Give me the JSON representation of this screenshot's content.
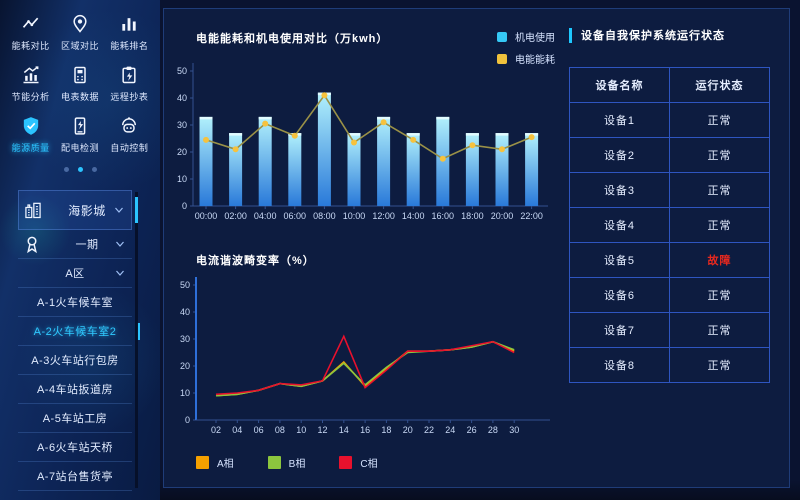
{
  "sidebar": {
    "menu": [
      {
        "label": "能耗对比",
        "icon": "trend-icon",
        "active": false
      },
      {
        "label": "区域对比",
        "icon": "location-pin-icon",
        "active": false
      },
      {
        "label": "能耗排名",
        "icon": "bar-chart-icon",
        "active": false
      },
      {
        "label": "节能分析",
        "icon": "analysis-chart-icon",
        "active": false
      },
      {
        "label": "电表数据",
        "icon": "meter-icon",
        "active": false
      },
      {
        "label": "远程抄表",
        "icon": "clipboard-icon",
        "active": false
      },
      {
        "label": "能源质量",
        "icon": "shield-check-icon",
        "active": true
      },
      {
        "label": "配电检测",
        "icon": "power-detect-icon",
        "active": false
      },
      {
        "label": "自动控制",
        "icon": "auto-control-icon",
        "active": false
      }
    ],
    "pager": {
      "count": 3,
      "active": 1
    },
    "tree": [
      {
        "label": "海影城",
        "icon": "building-icon",
        "chevron": true,
        "root": true,
        "active": false
      },
      {
        "label": "一期",
        "icon": "badge-icon",
        "chevron": true,
        "root": false,
        "active": false
      },
      {
        "label": "A区",
        "chevron": true,
        "root": false,
        "active": false
      },
      {
        "label": "A-1火车候车室",
        "root": false,
        "active": false
      },
      {
        "label": "A-2火车候车室2",
        "root": false,
        "active": true
      },
      {
        "label": "A-3火车站行包房",
        "root": false,
        "active": false
      },
      {
        "label": "A-4车站扳道房",
        "root": false,
        "active": false
      },
      {
        "label": "A-5车站工房",
        "root": false,
        "active": false
      },
      {
        "label": "A-6火车站天桥",
        "root": false,
        "active": false
      },
      {
        "label": "A-7站台售货亭",
        "root": false,
        "active": false
      }
    ]
  },
  "chart_data": [
    {
      "type": "bar",
      "title": "电能能耗和机电使用对比（万kwh）",
      "categories": [
        "00:00",
        "02:00",
        "04:00",
        "06:00",
        "08:00",
        "10:00",
        "12:00",
        "14:00",
        "16:00",
        "18:00",
        "20:00",
        "22:00"
      ],
      "series": [
        {
          "name": "机电使用",
          "type": "bar",
          "color": "#35c8f5",
          "values": [
            33,
            27,
            33,
            27,
            42,
            27,
            33,
            27,
            33,
            27,
            27,
            27
          ]
        },
        {
          "name": "电能能耗",
          "type": "line",
          "color": "#f0c23c",
          "line_color": "#9a9147",
          "dot_color": "#f6c23e",
          "dots": true,
          "values": [
            24.5,
            21,
            30.5,
            26,
            41,
            23.5,
            31,
            24.5,
            17.5,
            22.5,
            21,
            25.5
          ]
        }
      ],
      "ylim": [
        0,
        50
      ],
      "yticks": [
        0,
        10,
        20,
        30,
        40,
        50
      ],
      "legend_position": "top-right",
      "grid": false
    },
    {
      "type": "line",
      "title": "电流谐波畸变率（%）",
      "categories": [
        "02",
        "04",
        "06",
        "08",
        "10",
        "12",
        "14",
        "16",
        "18",
        "20",
        "22",
        "24",
        "26",
        "28",
        "30"
      ],
      "series": [
        {
          "name": "A相",
          "type": "line",
          "color": "#f5a000",
          "values": [
            9,
            9.5,
            11,
            13.5,
            12.5,
            14.5,
            21.5,
            12.5,
            19,
            25.5,
            25.5,
            26,
            27,
            29,
            25.5
          ]
        },
        {
          "name": "B相",
          "type": "line",
          "color": "#8cc63e",
          "values": [
            9,
            9.5,
            11,
            13.5,
            12.5,
            14.5,
            21,
            13,
            19.5,
            25,
            25.5,
            26,
            27,
            29,
            26
          ]
        },
        {
          "name": "C相",
          "type": "line",
          "color": "#e8112d",
          "values": [
            9.5,
            10,
            11,
            13.5,
            13,
            14.5,
            31,
            12,
            18.5,
            25.5,
            25.5,
            26,
            27.5,
            29,
            25
          ]
        }
      ],
      "ylim": [
        0,
        50
      ],
      "yticks": [
        0,
        10,
        20,
        30,
        40,
        50
      ],
      "legend_position": "bottom-left",
      "grid": false
    }
  ],
  "device_panel": {
    "title": "设备自我保护系统运行状态",
    "table": {
      "headers": [
        "设备名称",
        "运行状态"
      ],
      "rows": [
        {
          "name": "设备1",
          "status": "正常"
        },
        {
          "name": "设备2",
          "status": "正常"
        },
        {
          "name": "设备3",
          "status": "正常"
        },
        {
          "name": "设备4",
          "status": "正常"
        },
        {
          "name": "设备5",
          "status": "故障"
        },
        {
          "name": "设备6",
          "status": "正常"
        },
        {
          "name": "设备7",
          "status": "正常"
        },
        {
          "name": "设备8",
          "status": "正常"
        }
      ]
    },
    "fault_value": "故障"
  },
  "colors": {
    "accent": "#2bc4ff",
    "fault_red": "#e8281e",
    "bar_gradient_top": "#b2f1fc",
    "bar_gradient_bottom": "#2979d9",
    "bar_cap": "#e2fbff",
    "axis": "#33518f",
    "bright_y_axis": "#2e6fd9",
    "table_border": "#2e55c0"
  }
}
